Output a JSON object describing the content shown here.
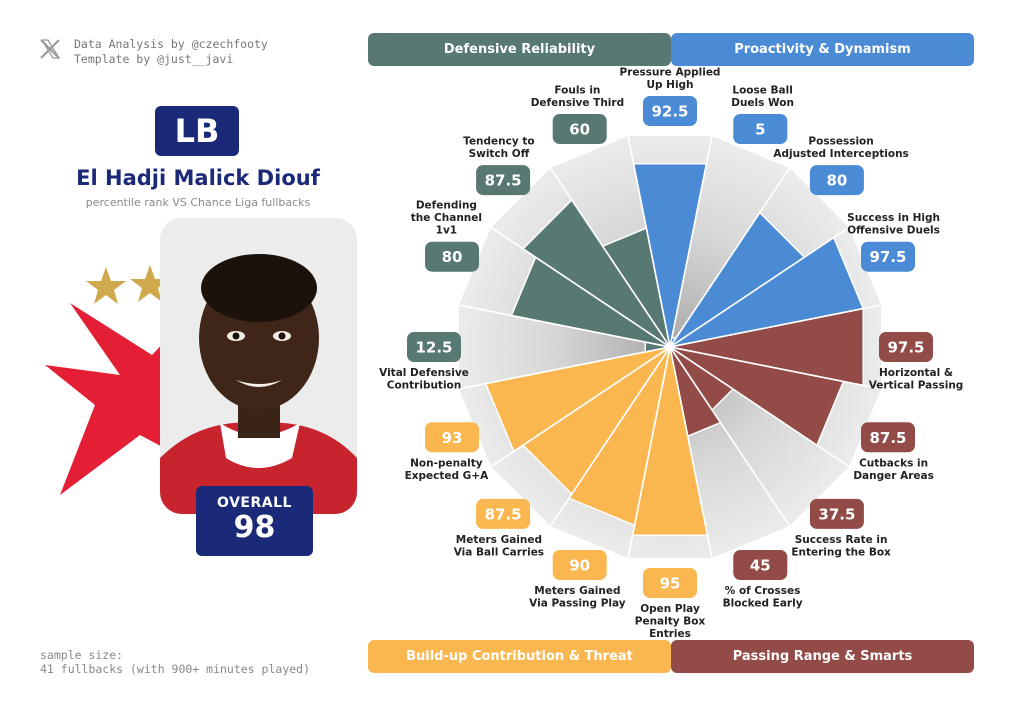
{
  "credits": {
    "line1": "Data Analysis by @czechfooty",
    "line2": "Template by @just__javi"
  },
  "player": {
    "position": "LB",
    "name": "El Hadji Malick Diouf",
    "subtitle": "percentile rank VS Chance Liga fullbacks",
    "overall_label": "OVERALL",
    "overall_value": "98"
  },
  "sample": {
    "line1": "sample size:",
    "line2": "41 fullbacks (with 900+ minutes played)"
  },
  "colors": {
    "defensive": "#587873",
    "proactivity": "#4b8ad4",
    "passing": "#924b47",
    "buildup": "#fbb74f",
    "navy": "#1b2a78"
  },
  "legend": {
    "defensive": "Defensive Reliability",
    "proactivity": "Proactivity & Dynamism",
    "buildup": "Build-up Contribution & Threat",
    "passing": "Passing Range & Smarts"
  },
  "chart_data": {
    "type": "radar",
    "title": "El Hadji Malick Diouf",
    "subtitle": "percentile rank VS Chance Liga fullbacks",
    "range": [
      0,
      100
    ],
    "metrics": [
      {
        "label": [
          "Pressure Applied",
          "Up High"
        ],
        "value": 92.5,
        "group": "proactivity"
      },
      {
        "label": [
          "Loose Ball",
          "Duels Won"
        ],
        "value": 5,
        "group": "proactivity"
      },
      {
        "label": [
          "Possession",
          "Adjusted Interceptions"
        ],
        "value": 80,
        "group": "proactivity"
      },
      {
        "label": [
          "Success in High",
          "Offensive Duels"
        ],
        "value": 97.5,
        "group": "proactivity"
      },
      {
        "label": [
          "Horizontal &",
          "Vertical Passing"
        ],
        "value": 97.5,
        "group": "passing"
      },
      {
        "label": [
          "Cutbacks in",
          "Danger Areas"
        ],
        "value": 87.5,
        "group": "passing"
      },
      {
        "label": [
          "Success Rate in",
          "Entering the Box"
        ],
        "value": 37.5,
        "group": "passing"
      },
      {
        "label": [
          "% of Crosses",
          "Blocked Early"
        ],
        "value": 45,
        "group": "passing"
      },
      {
        "label": [
          "Open Play",
          "Penalty Box",
          "Entries"
        ],
        "value": 95,
        "group": "buildup"
      },
      {
        "label": [
          "Meters Gained",
          "Via Passing Play"
        ],
        "value": 90,
        "group": "buildup"
      },
      {
        "label": [
          "Meters Gained",
          "Via Ball Carries"
        ],
        "value": 87.5,
        "group": "buildup"
      },
      {
        "label": [
          "Non-penalty",
          "Expected G+A"
        ],
        "value": 93,
        "group": "buildup"
      },
      {
        "label": [
          "Vital Defensive",
          "Contribution"
        ],
        "value": 12.5,
        "group": "defensive"
      },
      {
        "label": [
          "Defending",
          "the Channel",
          "1v1"
        ],
        "value": 80,
        "group": "defensive"
      },
      {
        "label": [
          "Tendency to",
          "Switch Off"
        ],
        "value": 87.5,
        "group": "defensive"
      },
      {
        "label": [
          "Fouls in",
          "Defensive Third"
        ],
        "value": 60,
        "group": "defensive"
      }
    ]
  }
}
